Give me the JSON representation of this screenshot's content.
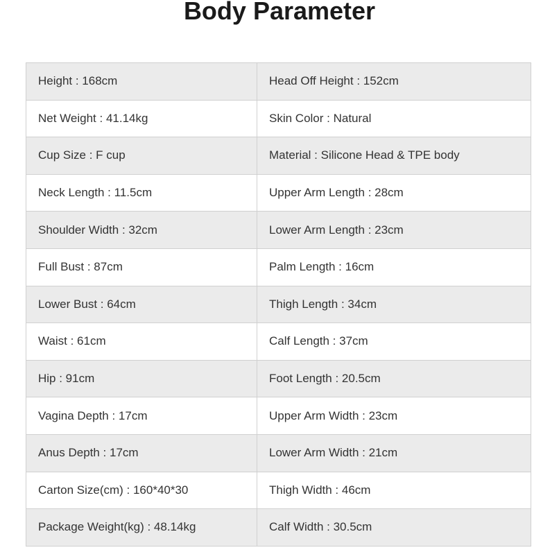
{
  "title": "Body Parameter",
  "rows": [
    [
      "Height : 168cm",
      "Head Off Height : 152cm"
    ],
    [
      "Net Weight : 41.14kg",
      "Skin Color : Natural"
    ],
    [
      "Cup Size : F cup",
      "Material : Silicone Head & TPE body"
    ],
    [
      "Neck Length : 11.5cm",
      "Upper Arm Length : 28cm"
    ],
    [
      "Shoulder Width : 32cm",
      "Lower Arm Length : 23cm"
    ],
    [
      "Full Bust : 87cm",
      "Palm Length : 16cm"
    ],
    [
      "Lower Bust : 64cm",
      "Thigh Length : 34cm"
    ],
    [
      "Waist : 61cm",
      "Calf Length : 37cm"
    ],
    [
      "Hip : 91cm",
      "Foot Length : 20.5cm"
    ],
    [
      "Vagina Depth : 17cm",
      "Upper Arm Width : 23cm"
    ],
    [
      "Anus Depth : 17cm",
      "Lower Arm Width : 21cm"
    ],
    [
      "Carton Size(cm) : 160*40*30",
      "Thigh Width : 46cm"
    ],
    [
      "Package Weight(kg) : 48.14kg",
      "Calf Width : 30.5cm"
    ]
  ],
  "colors": {
    "row_alt": "#ebebeb",
    "border": "#d0d0d0",
    "text": "#333333"
  }
}
